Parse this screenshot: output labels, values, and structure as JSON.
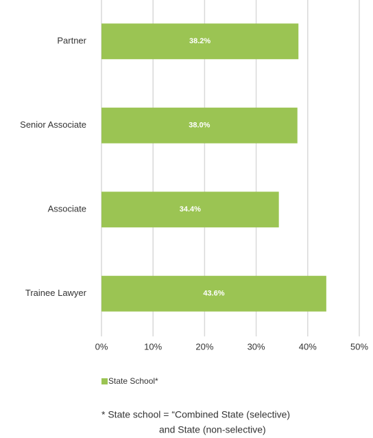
{
  "chart_data": {
    "type": "bar",
    "orientation": "horizontal",
    "categories": [
      "Partner",
      "Senior Associate",
      "Associate",
      "Trainee Lawyer"
    ],
    "series": [
      {
        "name": "State School*",
        "color": "#9bc453",
        "values": [
          38.2,
          38.0,
          34.4,
          43.6
        ],
        "value_labels": [
          "38.2%",
          "38.0%",
          "34.4%",
          "43.6%"
        ]
      }
    ],
    "xlim": [
      0,
      50
    ],
    "xticks": [
      {
        "value": 0,
        "label": "0%"
      },
      {
        "value": 10,
        "label": "10%"
      },
      {
        "value": 20,
        "label": "20%"
      },
      {
        "value": 30,
        "label": "30%"
      },
      {
        "value": 40,
        "label": "40%"
      },
      {
        "value": 50,
        "label": "50%"
      }
    ],
    "grid": true,
    "legend": "bottom",
    "footnote": [
      "* State school = “Combined State (selective)",
      "and State (non-selective)"
    ]
  }
}
